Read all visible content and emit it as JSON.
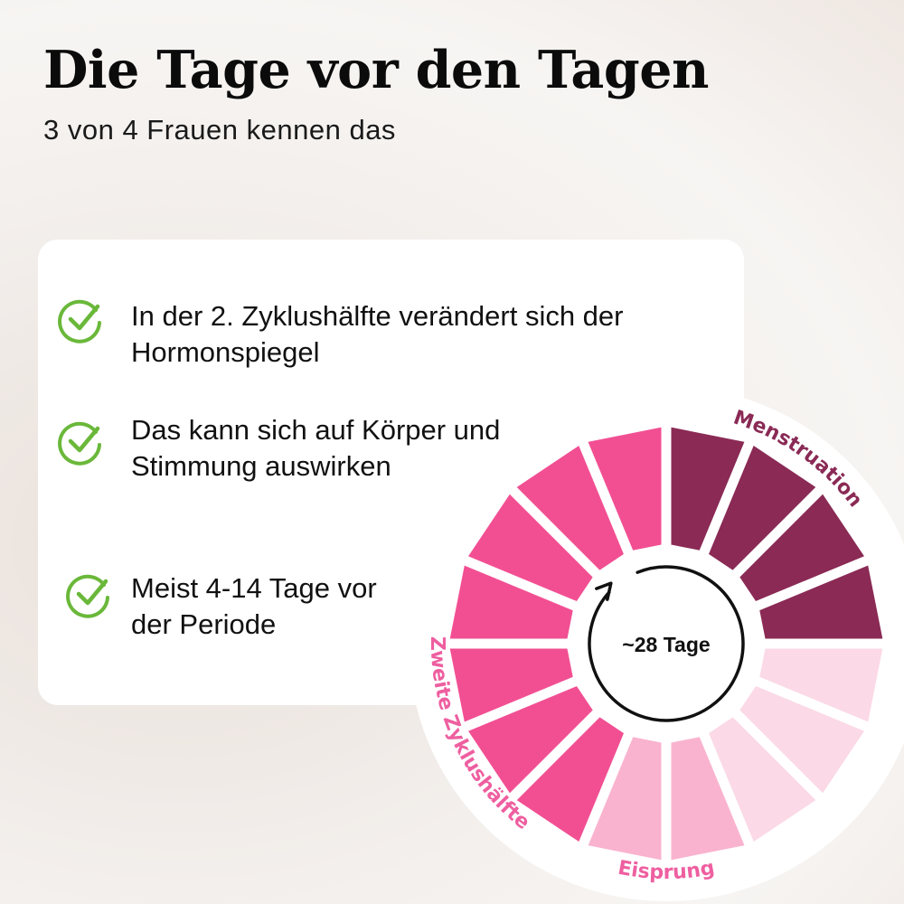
{
  "header": {
    "title": "Die Tage vor den Tagen",
    "subtitle": "3 von 4 Frauen kennen das"
  },
  "card": {
    "items": [
      {
        "icon": "check-circle-icon",
        "text": "In der 2. Zyklushälfte verändert sich der Hormonspiegel"
      },
      {
        "icon": "check-circle-icon",
        "text": "Das kann sich auf Körper und Stimmung auswirken"
      },
      {
        "icon": "check-circle-icon",
        "text": "Meist 4-14 Tage vor der Periode"
      }
    ],
    "check_color": "#6ab83a"
  },
  "wheel": {
    "center_label": "~28 Tage",
    "total_segments": 16,
    "phases": [
      {
        "label": "Menstruation",
        "segments": 4,
        "color": "#8a2a55",
        "label_color": "#8a2a55"
      },
      {
        "label": "",
        "segments": 3,
        "color": "#fbd9e6"
      },
      {
        "label": "Eisprung",
        "segments": 2,
        "color": "#f9b3cf",
        "label_color": "#ee5fa0"
      },
      {
        "label": "Zweite Zyklushälfte",
        "segments": 7,
        "color": "#f24f93",
        "label_color": "#ee5fa0"
      }
    ]
  }
}
